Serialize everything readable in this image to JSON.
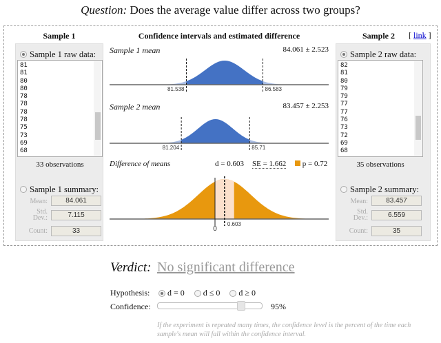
{
  "question": {
    "label": "Question:",
    "text": "Does the average value differ across two groups?"
  },
  "sample1": {
    "title": "Sample 1",
    "raw_label": "Sample 1 raw data:",
    "raw_values": [
      "81",
      "81",
      "80",
      "80",
      "78",
      "78",
      "78",
      "78",
      "75",
      "73",
      "69",
      "68"
    ],
    "observations": "33 observations",
    "summary_label": "Sample 1 summary:",
    "mean_label": "Mean:",
    "sd_label": "Std. Dev.:",
    "count_label": "Count:",
    "mean": "84.061",
    "sd": "7.115",
    "count": "33",
    "raw_selected": true
  },
  "sample2": {
    "title": "Sample 2",
    "raw_label": "Sample 2 raw data:",
    "raw_values": [
      "82",
      "81",
      "80",
      "79",
      "79",
      "77",
      "77",
      "76",
      "73",
      "72",
      "69",
      "68"
    ],
    "observations": "35 observations",
    "summary_label": "Sample 2 summary:",
    "mean_label": "Mean:",
    "sd_label": "Std. Dev.:",
    "count_label": "Count:",
    "mean": "83.457",
    "sd": "6.559",
    "count": "35",
    "raw_selected": true
  },
  "link": {
    "open": "[",
    "label": "link",
    "close": "]"
  },
  "middle": {
    "title": "Confidence intervals and estimated difference",
    "mean1": {
      "label": "Sample 1 mean",
      "value": "84.061 ± 2.523",
      "lower": "81.538",
      "upper": "86.583"
    },
    "mean2": {
      "label": "Sample 2 mean",
      "value": "83.457 ± 2.253",
      "lower": "81.204",
      "upper": "85.71"
    },
    "diff": {
      "label": "Difference of means",
      "d": "d = 0.603",
      "se": "SE = 1.662",
      "p": "p = 0.72",
      "zero": "0",
      "d_tick": "0.603"
    }
  },
  "chart_data": {
    "type": "area",
    "curves": [
      {
        "mean": 84.061,
        "margin": 2.523,
        "se": 1.2874
      },
      {
        "mean": 83.457,
        "margin": 2.253,
        "se": 1.1495
      },
      {
        "mean": 0.603,
        "se": 1.662
      }
    ],
    "colors": {
      "ci": "#4472c4",
      "p": "#e8980e",
      "band": "#fbe0cc"
    }
  },
  "verdict": {
    "label": "Verdict:",
    "text": "No significant difference"
  },
  "hypothesis": {
    "label": "Hypothesis:",
    "options": [
      "d = 0",
      "d ≤ 0",
      "d ≥ 0"
    ],
    "selected": 0
  },
  "confidence": {
    "label": "Confidence:",
    "value": "95%",
    "slider_fraction": 0.82
  },
  "note": "If the experiment is repeated many times, the confidence level is the percent of the time each sample's mean will fall within the confidence interval."
}
